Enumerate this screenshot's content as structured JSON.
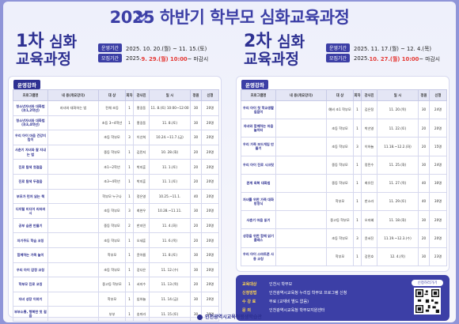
{
  "title": "2025 하반기 학부모 심화교육과정",
  "first": {
    "num": "1차",
    "title_a": " 심화",
    "title_b": "교육과정",
    "period_tag": "운영기간",
    "period": "2025. 10. 20.(월) ~ 11. 15.(토)",
    "recruit_tag": "모집기간",
    "recruit_pre": "2025. ",
    "recruit_date": "9. 29.(월) 10:00",
    "recruit_post": " ~ 마감시",
    "section": "운영강좌",
    "headers": [
      "프로그램명",
      "내 용(개요강의)",
      "대 상",
      "회차",
      "강사진",
      "일 시",
      "정원",
      "신청"
    ],
    "rows": [
      [
        "청소년자녀와 대화법(초1,2학년)",
        "자녀와 대화하는 법",
        "전체 초등",
        "1",
        "홍길동",
        "11. 8.(토) 10:00~12:00",
        "30",
        "20명"
      ],
      [
        "청소년자녀와 대화법(초3,4학년)",
        "",
        "초등 3~4학년",
        "1",
        "홍길동",
        "11. 8.(토)",
        "30",
        "20명"
      ],
      [
        "우리 아이 마음 건강지킴이",
        "",
        "초등 학부모",
        "3",
        "이선희",
        "10.24.~11.7.(금)",
        "30",
        "20명"
      ],
      [
        "사춘기 자녀와 잘 지내는 법",
        "",
        "중등 학부모",
        "1",
        "김민지",
        "10. 28.(화)",
        "20",
        "20명"
      ],
      [
        "진로 탐색 첫걸음",
        "",
        "초1~2학년",
        "1",
        "박지훈",
        "11. 1.(토)",
        "20",
        "20명"
      ],
      [
        "진로 탐색 두걸음",
        "",
        "초3~4학년",
        "1",
        "박지훈",
        "11. 1.(토)",
        "20",
        "20명"
      ],
      [
        "부모가 먼저 읽는 책",
        "",
        "학부모 누구나",
        "1",
        "정은영",
        "10.25.~11.1.",
        "40",
        "20명"
      ],
      [
        "디지털 미디어 리터러시",
        "",
        "초등 학부모",
        "3",
        "최현우",
        "10.28.~11.11.",
        "30",
        "20명"
      ],
      [
        "공부 습관 만들기",
        "",
        "중등 학부모",
        "2",
        "한지민",
        "11. 4.(화)",
        "20",
        "20명"
      ],
      [
        "자기주도 학습 코칭",
        "",
        "초등 학부모",
        "1",
        "오세훈",
        "11. 6.(목)",
        "20",
        "20명"
      ],
      [
        "함께하는 가족 놀이",
        "",
        "학부모",
        "1",
        "윤아름",
        "11. 8.(토)",
        "30",
        "20명"
      ],
      [
        "우리 아이 감정 코칭",
        "",
        "초등 학부모",
        "1",
        "강다은",
        "11. 12.(수)",
        "30",
        "20명"
      ],
      [
        "학부모 진로 코칭",
        "",
        "중고등 학부모",
        "1",
        "서지수",
        "11. 13.(목)",
        "20",
        "20명"
      ],
      [
        "자녀 성장 이야기",
        "",
        "학부모",
        "1",
        "임하늘",
        "11. 14.(금)",
        "30",
        "20명"
      ],
      [
        "부부소통, 행복한 첫 걸음",
        "",
        "부부",
        "1",
        "송미라",
        "11. 15.(토)",
        "30",
        "20명"
      ]
    ]
  },
  "second": {
    "num": "2차",
    "title_a": " 심화",
    "title_b": "교육과정",
    "period_tag": "운영기간",
    "period": "2025. 11. 17.(월) ~ 12. 4.(목)",
    "recruit_tag": "모집기간",
    "recruit_pre": "2025. ",
    "recruit_date": "10. 27.(월) 10:00",
    "recruit_post": " ~ 마감시",
    "section": "운영강좌",
    "headers": [
      "프로그램명",
      "내 용(개요강의)",
      "대 상",
      "회차",
      "강사진",
      "일 시",
      "정원",
      "신청"
    ],
    "rows": [
      [
        "우리 아이 첫 학교생활 길잡이",
        "",
        "예비 초1 학부모",
        "1",
        "김은정",
        "11. 20.(목)",
        "30",
        "24명"
      ],
      [
        "자녀와 함께하는 마음 놀이터",
        "",
        "초등 학부모",
        "1",
        "박선영",
        "11. 22.(토)",
        "20",
        "20명"
      ],
      [
        "우리 가족 보드게임 만들기",
        "",
        "초등 학부모",
        "3",
        "이하늘",
        "11.18.~12.2.(화)",
        "20",
        "15명"
      ],
      [
        "우리 아이 진로 시크릿",
        "",
        "중등 학부모",
        "1",
        "정민수",
        "11. 25.(화)",
        "30",
        "24명"
      ],
      [
        "관계 회복 대화법",
        "",
        "중등 학부모",
        "1",
        "최유진",
        "11. 27.(목)",
        "40",
        "30명"
      ],
      [
        "자녀를 위한 가족 대화 방정식",
        "",
        "학부모",
        "1",
        "한소라",
        "11. 29.(토)",
        "40",
        "30명"
      ],
      [
        "사춘기 마음 읽기",
        "",
        "중고등 학부모",
        "1",
        "오지혜",
        "11. 18.(화)",
        "30",
        "20명"
      ],
      [
        "성장을 위한 함께 읽기 클래스",
        "",
        "초등 학부모",
        "3",
        "윤서진",
        "11.19.~12.3.(수)",
        "20",
        "20명"
      ],
      [
        "우리 아이 스마트폰 사용 코칭",
        "",
        "학부모",
        "1",
        "강민호",
        "12. 4.(목)",
        "30",
        "23명"
      ]
    ],
    "info": [
      {
        "k": "교육대상",
        "v": "인천시 학부모"
      },
      {
        "k": "신청방법",
        "v": "인천광역시교육청 누리집 학부모 프로그램 신청"
      },
      {
        "k": "수 강 료",
        "v": "무료 (교재비 별도 없음)"
      },
      {
        "k": "문    의",
        "v": "인천광역시교육청 학부모지원센터"
      }
    ],
    "qr_label": "신청하러가기"
  },
  "footer": "인천광역시교육청평생학습관"
}
